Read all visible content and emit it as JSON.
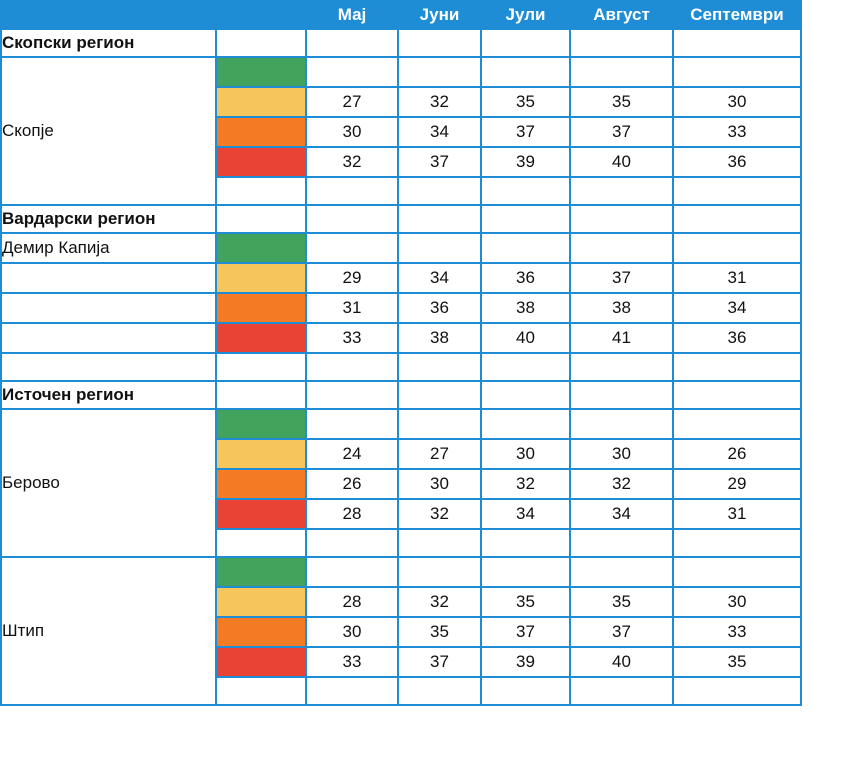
{
  "header": {
    "corner": "",
    "swatch_col": "",
    "months": [
      "Мај",
      "Јуни",
      "Јули",
      "Август",
      "Септември"
    ]
  },
  "colors": {
    "border": "#1f8dd6",
    "header_bg": "#1f8dd6",
    "green": "#43a35d",
    "yellow": "#f6c55c",
    "orange": "#f27b24",
    "red": "#e94335"
  },
  "regions": [
    {
      "name": "Скопски  регион",
      "locations": [
        {
          "name": "Скопје",
          "levels": [
            {
              "color": "green",
              "values": [
                "",
                "",
                "",
                "",
                ""
              ]
            },
            {
              "color": "yellow",
              "values": [
                "27",
                "32",
                "35",
                "35",
                "30"
              ]
            },
            {
              "color": "orange",
              "values": [
                "30",
                "34",
                "37",
                "37",
                "33"
              ]
            },
            {
              "color": "red",
              "values": [
                "32",
                "37",
                "39",
                "40",
                "36"
              ]
            }
          ]
        }
      ]
    },
    {
      "name": "Вардарски регион",
      "locations": [
        {
          "name": "Демир Капија",
          "levels": [
            {
              "color": "green",
              "values": [
                "",
                "",
                "",
                "",
                ""
              ]
            },
            {
              "color": "yellow",
              "values": [
                "29",
                "34",
                "36",
                "37",
                "31"
              ]
            },
            {
              "color": "orange",
              "values": [
                "31",
                "36",
                "38",
                "38",
                "34"
              ]
            },
            {
              "color": "red",
              "values": [
                "33",
                "38",
                "40",
                "41",
                "36"
              ]
            }
          ]
        }
      ]
    },
    {
      "name": "Источен регион",
      "locations": [
        {
          "name": "Берово",
          "levels": [
            {
              "color": "green",
              "values": [
                "",
                "",
                "",
                "",
                ""
              ]
            },
            {
              "color": "yellow",
              "values": [
                "24",
                "27",
                "30",
                "30",
                "26"
              ]
            },
            {
              "color": "orange",
              "values": [
                "26",
                "30",
                "32",
                "32",
                "29"
              ]
            },
            {
              "color": "red",
              "values": [
                "28",
                "32",
                "34",
                "34",
                "31"
              ]
            }
          ]
        },
        {
          "name": "Штип",
          "levels": [
            {
              "color": "green",
              "values": [
                "",
                "",
                "",
                "",
                ""
              ]
            },
            {
              "color": "yellow",
              "values": [
                "28",
                "32",
                "35",
                "35",
                "30"
              ]
            },
            {
              "color": "orange",
              "values": [
                "30",
                "35",
                "37",
                "37",
                "33"
              ]
            },
            {
              "color": "red",
              "values": [
                "33",
                "37",
                "39",
                "40",
                "35"
              ]
            }
          ]
        }
      ]
    }
  ]
}
